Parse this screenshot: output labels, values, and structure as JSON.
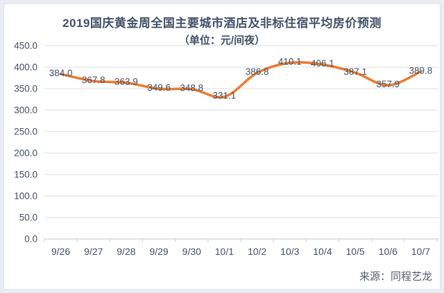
{
  "title": "2019国庆黄金周全国主要城市酒店及非标住宿平均房价预测",
  "subtitle": "（单位：元/间夜）",
  "source": "来源：同程艺龙",
  "colors": {
    "line": "#ED7D31",
    "title": "#44546A",
    "tick_label": "#44546A",
    "data_label": "#44546A",
    "gridline": "#D9DEE4",
    "axis_line": "#BFC7CF",
    "source_text": "#555f6d",
    "card_background": "#FFFFFF",
    "frame_background": "#E9EDF2"
  },
  "chart_data": {
    "type": "line",
    "title": "2019国庆黄金周全国主要城市酒店及非标住宿平均房价预测",
    "subtitle": "（单位：元/间夜）",
    "categories": [
      "9/26",
      "9/27",
      "9/28",
      "9/29",
      "9/30",
      "10/1",
      "10/2",
      "10/3",
      "10/4",
      "10/5",
      "10/6",
      "10/7"
    ],
    "series": [
      {
        "name": "平均房价",
        "values": [
          384.0,
          367.8,
          363.9,
          349.6,
          348.8,
          331.1,
          386.8,
          410.1,
          406.1,
          387.1,
          357.9,
          389.8
        ]
      }
    ],
    "xlabel": "",
    "ylabel": "",
    "ylim": [
      0,
      450
    ],
    "ytick_step": 50,
    "ytick_decimals": 1,
    "grid": true,
    "legend": "none",
    "data_labels": true,
    "smooth_line": true,
    "source": "来源：同程艺龙"
  }
}
